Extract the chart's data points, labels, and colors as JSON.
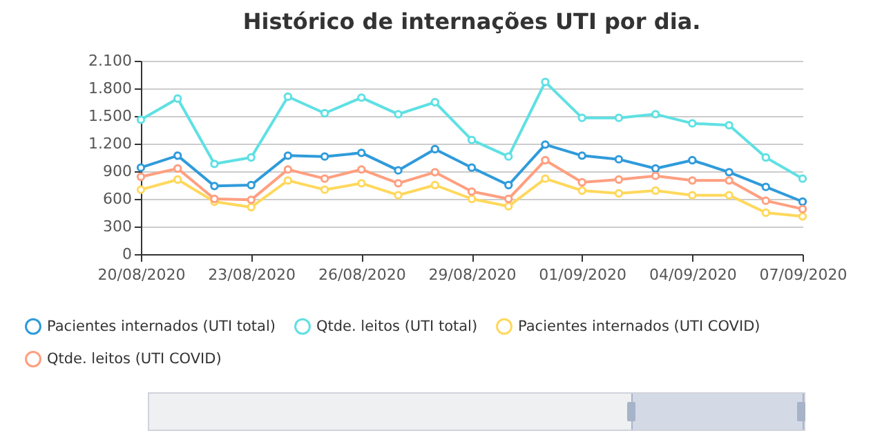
{
  "chart_data": {
    "type": "line",
    "title": "Histórico de internações UTI por dia.",
    "x": [
      "2020-08-20",
      "2020-08-21",
      "2020-08-22",
      "2020-08-23",
      "2020-08-24",
      "2020-08-25",
      "2020-08-26",
      "2020-08-27",
      "2020-08-28",
      "2020-08-29",
      "2020-08-30",
      "2020-08-31",
      "2020-09-01",
      "2020-09-02",
      "2020-09-03",
      "2020-09-04",
      "2020-09-05",
      "2020-09-06",
      "2020-09-07"
    ],
    "series": [
      {
        "name": "Pacientes internados (UTI total)",
        "color": "#2f9bdb",
        "values": [
          940,
          1070,
          740,
          750,
          1070,
          1060,
          1100,
          910,
          1140,
          940,
          750,
          1190,
          1070,
          1030,
          930,
          1020,
          890,
          730,
          570
        ]
      },
      {
        "name": "Qtde. leitos (UTI total)",
        "color": "#5fe0e3",
        "values": [
          1460,
          1690,
          980,
          1050,
          1710,
          1530,
          1700,
          1520,
          1650,
          1240,
          1060,
          1870,
          1480,
          1480,
          1520,
          1420,
          1400,
          1050,
          820
        ]
      },
      {
        "name": "Pacientes internados (UTI COVID)",
        "color": "#ffd85c",
        "values": [
          700,
          810,
          570,
          510,
          800,
          700,
          770,
          640,
          750,
          600,
          520,
          820,
          690,
          660,
          690,
          640,
          640,
          450,
          410
        ]
      },
      {
        "name": "Qtde. leitos (UTI COVID)",
        "color": "#ff9f7f",
        "values": [
          840,
          930,
          600,
          590,
          920,
          820,
          920,
          770,
          890,
          680,
          600,
          1020,
          780,
          810,
          850,
          800,
          800,
          580,
          490
        ]
      }
    ],
    "xlim": [
      "2020-08-20",
      "2020-09-07"
    ],
    "xticks": [
      {
        "value": "2020-08-20",
        "label": "20/08/2020"
      },
      {
        "value": "2020-08-23",
        "label": "23/08/2020"
      },
      {
        "value": "2020-08-26",
        "label": "26/08/2020"
      },
      {
        "value": "2020-08-29",
        "label": "29/08/2020"
      },
      {
        "value": "2020-09-01",
        "label": "01/09/2020"
      },
      {
        "value": "2020-09-04",
        "label": "04/09/2020"
      },
      {
        "value": "2020-09-07",
        "label": "07/09/2020"
      }
    ],
    "ylim": [
      0,
      2100
    ],
    "yticks": [
      0,
      300,
      600,
      900,
      {
        "value": 1200,
        "label": "1.200"
      },
      {
        "value": 1500,
        "label": "1.500"
      },
      {
        "value": 1800,
        "label": "1.800"
      },
      {
        "value": 2100,
        "label": "2.100"
      }
    ],
    "grid": "y",
    "legend": "bottom",
    "marker": "circle",
    "line_style": "solid"
  }
}
